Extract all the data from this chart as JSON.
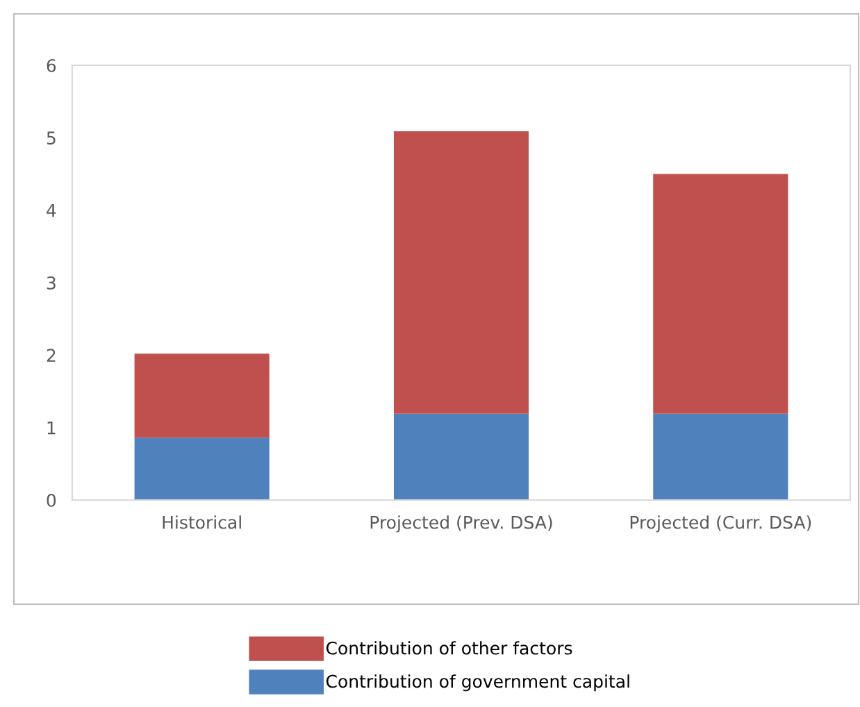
{
  "chart_data": {
    "type": "bar",
    "stacked": true,
    "categories": [
      "Historical",
      "Projected (Prev. DSA)",
      "Projected (Curr. DSA)"
    ],
    "series": [
      {
        "name": "Contribution of government capital",
        "color": "#4f81bd",
        "values": [
          0.86,
          1.19,
          1.19
        ]
      },
      {
        "name": "Contribution of other factors",
        "color": "#c0504d",
        "values": [
          1.16,
          3.9,
          3.31
        ]
      }
    ],
    "ylim": [
      0,
      6
    ],
    "yticks": [
      0,
      1,
      2,
      3,
      4,
      5,
      6
    ],
    "grid": false,
    "legend": "bottom"
  }
}
